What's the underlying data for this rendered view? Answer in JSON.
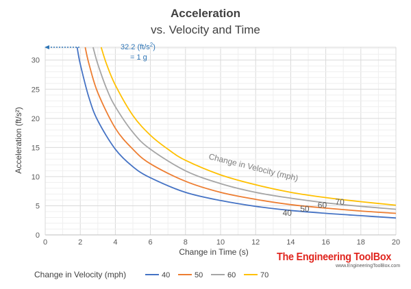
{
  "chart_data": {
    "type": "line",
    "title": "Acceleration",
    "subtitle": "vs. Velocity and Time",
    "xlabel": "Change in Time (s)",
    "ylabel": "Acceleration (ft/s²)",
    "xlim": [
      0,
      20
    ],
    "ylim": [
      0,
      32.2
    ],
    "x_ticks": [
      0,
      2,
      4,
      6,
      8,
      10,
      12,
      14,
      16,
      18,
      20
    ],
    "y_ticks": [
      0,
      5,
      10,
      15,
      20,
      25,
      30
    ],
    "grid": true,
    "legend_title": "Change in Velocity (mph)",
    "legend_position": "bottom",
    "curve_note": "Change in Velocity (mph)",
    "annotation": {
      "line1": "32.2 (ft/s",
      "sup": "2",
      "line1_end": ")",
      "line2": "= 1 g",
      "y": 32.2
    },
    "series": [
      {
        "name": "40",
        "color": "#4472c4",
        "x": [
          1.82,
          2,
          2.5,
          3,
          4,
          5,
          6,
          8,
          10,
          12,
          14,
          16,
          18,
          20
        ],
        "values": [
          32.2,
          29.3,
          23.5,
          19.6,
          14.7,
          11.7,
          9.8,
          7.3,
          5.9,
          4.9,
          4.2,
          3.7,
          3.3,
          2.9
        ]
      },
      {
        "name": "50",
        "color": "#ed7d31",
        "x": [
          2.28,
          2.5,
          3,
          4,
          5,
          6,
          8,
          10,
          12,
          14,
          16,
          18,
          20
        ],
        "values": [
          32.2,
          29.3,
          24.4,
          18.3,
          14.7,
          12.2,
          9.2,
          7.3,
          6.1,
          5.2,
          4.6,
          4.1,
          3.7
        ]
      },
      {
        "name": "60",
        "color": "#a5a5a5",
        "x": [
          2.73,
          3,
          3.5,
          4,
          5,
          6,
          8,
          10,
          12,
          14,
          16,
          18,
          20
        ],
        "values": [
          32.2,
          29.3,
          25.1,
          22.0,
          17.6,
          14.7,
          11.0,
          8.8,
          7.3,
          6.3,
          5.5,
          4.9,
          4.4
        ]
      },
      {
        "name": "70",
        "color": "#ffc000",
        "x": [
          3.19,
          3.5,
          4,
          5,
          6,
          7,
          8,
          10,
          12,
          14,
          16,
          18,
          20
        ],
        "values": [
          32.2,
          29.3,
          25.7,
          20.5,
          17.1,
          14.7,
          12.8,
          10.3,
          8.6,
          7.3,
          6.4,
          5.7,
          5.1
        ]
      }
    ]
  },
  "brand": {
    "name": "The Engineering ToolBox",
    "url": "www.EngineeringToolBox.com"
  }
}
